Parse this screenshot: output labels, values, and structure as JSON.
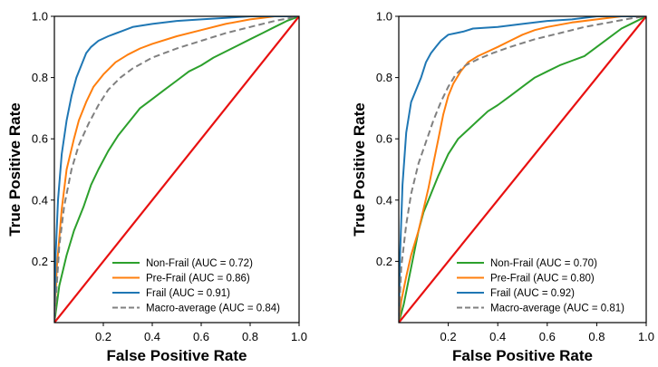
{
  "chart_data": [
    {
      "type": "line",
      "title": "",
      "xlabel": "False Positive Rate",
      "ylabel": "True Positive Rate",
      "xlim": [
        0,
        1
      ],
      "ylim": [
        0,
        1
      ],
      "xticks": [
        0.2,
        0.4,
        0.6,
        0.8,
        1.0
      ],
      "xtick_labels": [
        "0.2",
        "0.4",
        "0.6",
        "0.8",
        "1.0"
      ],
      "yticks": [
        0.2,
        0.4,
        0.6,
        0.8,
        1.0
      ],
      "ytick_labels": [
        "0.2",
        "0.4",
        "0.6",
        "0.8",
        "1.0"
      ],
      "grid": false,
      "legend_position": "lower-right",
      "series": [
        {
          "name": "Non-Frail (AUC = 0.72)",
          "color": "#2ca02c",
          "x": [
            0,
            0.02,
            0.05,
            0.08,
            0.12,
            0.15,
            0.18,
            0.22,
            0.26,
            0.3,
            0.35,
            0.4,
            0.45,
            0.5,
            0.55,
            0.6,
            0.65,
            0.7,
            0.75,
            0.8,
            0.85,
            0.9,
            0.95,
            1.0
          ],
          "y": [
            0,
            0.12,
            0.22,
            0.3,
            0.38,
            0.45,
            0.5,
            0.56,
            0.61,
            0.65,
            0.7,
            0.73,
            0.76,
            0.79,
            0.82,
            0.84,
            0.865,
            0.885,
            0.905,
            0.925,
            0.945,
            0.965,
            0.985,
            1.0
          ]
        },
        {
          "name": "Pre-Frail (AUC = 0.86)",
          "color": "#ff7f0e",
          "x": [
            0,
            0.01,
            0.03,
            0.05,
            0.08,
            0.1,
            0.13,
            0.16,
            0.2,
            0.25,
            0.3,
            0.35,
            0.4,
            0.5,
            0.6,
            0.7,
            0.8,
            0.85,
            0.9,
            1.0
          ],
          "y": [
            0,
            0.18,
            0.37,
            0.5,
            0.6,
            0.66,
            0.72,
            0.77,
            0.81,
            0.85,
            0.875,
            0.895,
            0.91,
            0.935,
            0.955,
            0.975,
            0.99,
            0.995,
            1.0,
            1.0
          ]
        },
        {
          "name": "Frail (AUC = 0.91)",
          "color": "#1f77b4",
          "x": [
            0,
            0.005,
            0.015,
            0.03,
            0.05,
            0.07,
            0.09,
            0.11,
            0.13,
            0.15,
            0.18,
            0.22,
            0.27,
            0.32,
            0.4,
            0.5,
            0.6,
            0.7,
            0.8,
            0.9,
            1.0
          ],
          "y": [
            0,
            0.22,
            0.4,
            0.55,
            0.66,
            0.74,
            0.8,
            0.84,
            0.88,
            0.9,
            0.92,
            0.935,
            0.95,
            0.965,
            0.975,
            0.985,
            0.99,
            0.995,
            1.0,
            1.0,
            1.0
          ]
        },
        {
          "name": "Macro-average (AUC = 0.84)",
          "color": "#808080",
          "dashed": true,
          "x": [
            0,
            0.02,
            0.04,
            0.07,
            0.1,
            0.14,
            0.18,
            0.22,
            0.27,
            0.32,
            0.4,
            0.5,
            0.6,
            0.7,
            0.8,
            0.9,
            1.0
          ],
          "y": [
            0,
            0.25,
            0.38,
            0.5,
            0.58,
            0.65,
            0.71,
            0.76,
            0.8,
            0.83,
            0.865,
            0.895,
            0.92,
            0.945,
            0.965,
            0.985,
            1.0
          ]
        },
        {
          "name": "",
          "color": "#e81010",
          "chance": true,
          "x": [
            0,
            1
          ],
          "y": [
            0,
            1
          ]
        }
      ]
    },
    {
      "type": "line",
      "title": "",
      "xlabel": "False Positive Rate",
      "ylabel": "True Positive Rate",
      "xlim": [
        0,
        1
      ],
      "ylim": [
        0,
        1
      ],
      "xticks": [
        0.2,
        0.4,
        0.6,
        0.8,
        1.0
      ],
      "xtick_labels": [
        "0.2",
        "0.4",
        "0.6",
        "0.8",
        "1.0"
      ],
      "yticks": [
        0.2,
        0.4,
        0.6,
        0.8,
        1.0
      ],
      "ytick_labels": [
        "0.2",
        "0.4",
        "0.6",
        "0.8",
        "1.0"
      ],
      "grid": false,
      "legend_position": "lower-right",
      "series": [
        {
          "name": "Non-Frail (AUC = 0.70)",
          "color": "#2ca02c",
          "x": [
            0,
            0.02,
            0.04,
            0.06,
            0.08,
            0.1,
            0.13,
            0.16,
            0.2,
            0.24,
            0.28,
            0.32,
            0.36,
            0.4,
            0.45,
            0.5,
            0.55,
            0.6,
            0.65,
            0.7,
            0.75,
            0.8,
            0.85,
            0.9,
            0.95,
            1.0
          ],
          "y": [
            0,
            0.06,
            0.14,
            0.22,
            0.3,
            0.36,
            0.42,
            0.48,
            0.55,
            0.6,
            0.63,
            0.66,
            0.69,
            0.71,
            0.74,
            0.77,
            0.8,
            0.82,
            0.84,
            0.855,
            0.87,
            0.9,
            0.93,
            0.96,
            0.98,
            1.0
          ]
        },
        {
          "name": "Pre-Frail (AUC = 0.80)",
          "color": "#ff7f0e",
          "x": [
            0,
            0.01,
            0.03,
            0.05,
            0.08,
            0.1,
            0.12,
            0.14,
            0.16,
            0.18,
            0.2,
            0.22,
            0.25,
            0.28,
            0.32,
            0.36,
            0.4,
            0.45,
            0.5,
            0.55,
            0.6,
            0.7,
            0.8,
            0.9,
            1.0
          ],
          "y": [
            0,
            0.07,
            0.15,
            0.22,
            0.3,
            0.37,
            0.44,
            0.52,
            0.6,
            0.68,
            0.74,
            0.78,
            0.82,
            0.85,
            0.87,
            0.885,
            0.9,
            0.92,
            0.94,
            0.955,
            0.965,
            0.98,
            0.99,
            1.0,
            1.0
          ]
        },
        {
          "name": "Frail (AUC = 0.92)",
          "color": "#1f77b4",
          "x": [
            0,
            0.005,
            0.015,
            0.03,
            0.05,
            0.07,
            0.09,
            0.11,
            0.13,
            0.15,
            0.17,
            0.2,
            0.23,
            0.26,
            0.3,
            0.4,
            0.5,
            0.6,
            0.7,
            0.8,
            1.0
          ],
          "y": [
            0,
            0.22,
            0.45,
            0.62,
            0.72,
            0.76,
            0.8,
            0.85,
            0.88,
            0.9,
            0.92,
            0.94,
            0.945,
            0.95,
            0.96,
            0.965,
            0.975,
            0.985,
            0.99,
            1.0,
            1.0
          ]
        },
        {
          "name": "Macro-average (AUC = 0.81)",
          "color": "#808080",
          "dashed": true,
          "x": [
            0,
            0.01,
            0.03,
            0.05,
            0.08,
            0.11,
            0.14,
            0.17,
            0.2,
            0.23,
            0.27,
            0.32,
            0.38,
            0.45,
            0.55,
            0.65,
            0.75,
            0.85,
            0.95,
            1.0
          ],
          "y": [
            0,
            0.18,
            0.32,
            0.42,
            0.52,
            0.59,
            0.66,
            0.72,
            0.77,
            0.81,
            0.84,
            0.86,
            0.88,
            0.9,
            0.925,
            0.945,
            0.965,
            0.98,
            0.995,
            1.0
          ]
        },
        {
          "name": "",
          "color": "#e81010",
          "chance": true,
          "x": [
            0,
            1
          ],
          "y": [
            0,
            1
          ]
        }
      ]
    }
  ]
}
